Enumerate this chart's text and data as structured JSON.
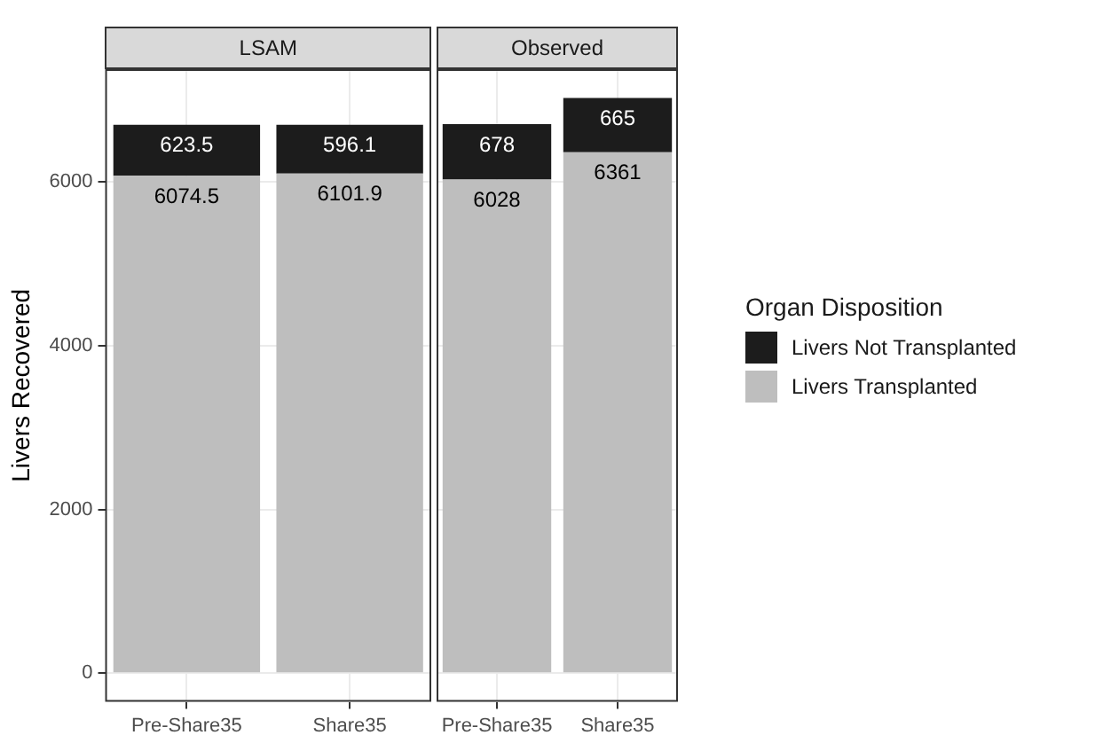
{
  "chart_data": [
    {
      "type": "bar",
      "title": "LSAM",
      "ylabel": "Livers Recovered",
      "categories": [
        "Pre-Share35",
        "Share35"
      ],
      "stacked": true,
      "series": [
        {
          "name": "Livers Transplanted",
          "color": "#bebebe",
          "values": [
            6074.5,
            6101.9
          ]
        },
        {
          "name": "Livers Not Transplanted",
          "color": "#1c1c1c",
          "values": [
            623.5,
            596.1
          ]
        }
      ],
      "ylim": [
        -351,
        7377
      ],
      "yticks": [
        0,
        2000,
        4000,
        6000
      ],
      "grid": true,
      "data_labels": true,
      "legend": "right"
    },
    {
      "type": "bar",
      "title": "Observed",
      "categories": [
        "Pre-Share35",
        "Share35"
      ],
      "stacked": true,
      "series": [
        {
          "name": "Livers Transplanted",
          "color": "#bebebe",
          "values": [
            6028,
            6361
          ]
        },
        {
          "name": "Livers Not Transplanted",
          "color": "#1c1c1c",
          "values": [
            678,
            665
          ]
        }
      ],
      "ylim": [
        -351,
        7377
      ],
      "yticks": [
        0,
        2000,
        4000,
        6000
      ],
      "grid": true,
      "data_labels": true,
      "legend": "right",
      "legend_title": "Organ Disposition",
      "tick_labels": "x"
    }
  ]
}
